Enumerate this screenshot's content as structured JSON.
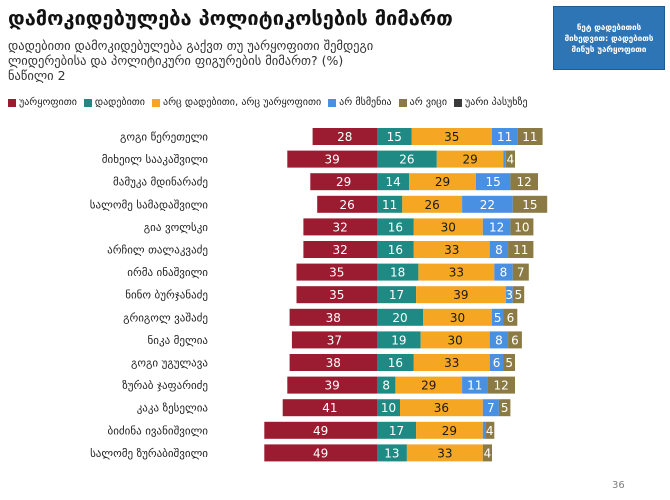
{
  "title": "დამოკიდებულება პოლიტიკოსების მიმართ",
  "subtitle": "დადებითი დამოკიდებულება გაქვთ თუ უარყოფითი შემდეგი ლიდერებისა და პოლიტიკური ფიგურების მიმართ? (%) ნაწილი 2",
  "net_box": "ნეტ დადებითის მიხედვით: დადებითს მინუს უარყოფითი",
  "page_number": "36",
  "chart_data": {
    "type": "bar",
    "stacked": "diverging",
    "categories": [
      "გოგი წერეთელი",
      "მიხეილ სააკაშვილი",
      "მამუკა მდინარაძე",
      "სალომე სამადაშვილი",
      "გია ვოლსკი",
      "არჩილ თალაკვაძე",
      "ირმა ინაშვილი",
      "ნინო ბურჯანაძე",
      "გრიგოლ ვაშაძე",
      "ნიკა მელია",
      "გოგი უგულავა",
      "ზურაბ ჯაფარიძე",
      "კაკა ზესელია",
      "ბიძინა ივანიშვილი",
      "სალომე ზურაბიშვილი"
    ],
    "series": [
      {
        "name": "უარყოფითი",
        "color": "#9b1b30",
        "values": [
          28,
          39,
          29,
          26,
          32,
          32,
          35,
          35,
          38,
          37,
          38,
          39,
          41,
          49,
          49
        ]
      },
      {
        "name": "დადებითი",
        "color": "#1f8a84",
        "values": [
          15,
          26,
          14,
          11,
          16,
          16,
          18,
          17,
          20,
          19,
          16,
          8,
          10,
          17,
          13
        ]
      },
      {
        "name": "არც დადებითი, არც უარყოფითი",
        "color": "#f5a623",
        "values": [
          35,
          29,
          29,
          26,
          30,
          33,
          33,
          39,
          30,
          30,
          33,
          29,
          36,
          29,
          33
        ]
      },
      {
        "name": "არ მსმენია",
        "color": "#4a90e2",
        "values": [
          11,
          1,
          15,
          22,
          12,
          8,
          8,
          3,
          5,
          8,
          6,
          11,
          7,
          1,
          0
        ]
      },
      {
        "name": "არ ვიცი",
        "color": "#8c7a45",
        "values": [
          11,
          4,
          12,
          15,
          10,
          11,
          7,
          5,
          6,
          6,
          5,
          12,
          5,
          4,
          4
        ]
      },
      {
        "name": "უარი პასუხზე",
        "color": "#3a3a3a",
        "values": [
          0,
          0,
          0,
          0,
          0,
          0,
          0,
          0,
          0,
          0,
          0,
          0,
          0,
          0,
          0
        ]
      }
    ],
    "labels": [
      [
        "28",
        "15",
        "35",
        "11",
        "11"
      ],
      [
        "39",
        "26",
        "29",
        "",
        "4"
      ],
      [
        "29",
        "14",
        "29",
        "15",
        "12"
      ],
      [
        "26",
        "11",
        "26",
        "22",
        "15"
      ],
      [
        "32",
        "16",
        "30",
        "12",
        "10"
      ],
      [
        "32",
        "16",
        "33",
        "8",
        "11"
      ],
      [
        "35",
        "18",
        "33",
        "8",
        "7"
      ],
      [
        "35",
        "17",
        "39",
        "3",
        "5"
      ],
      [
        "38",
        "20",
        "30",
        "5",
        "6"
      ],
      [
        "37",
        "19",
        "30",
        "8",
        "6"
      ],
      [
        "38",
        "16",
        "33",
        "6",
        "5"
      ],
      [
        "39",
        "8",
        "29",
        "11",
        "12"
      ],
      [
        "41",
        "10",
        "36",
        "7",
        "5"
      ],
      [
        "49",
        "17",
        "29",
        "",
        "4"
      ],
      [
        "49",
        "13",
        "33",
        "",
        "4"
      ]
    ]
  }
}
